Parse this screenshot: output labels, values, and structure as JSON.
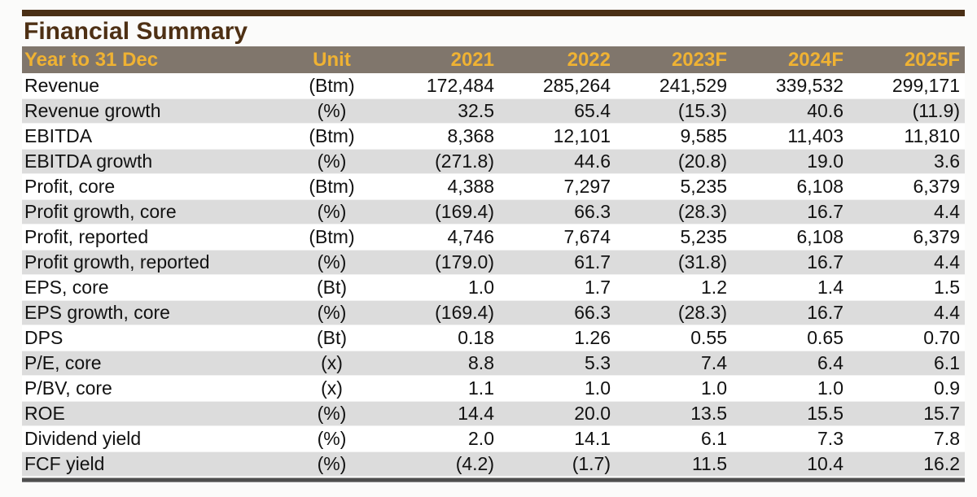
{
  "page": {
    "title": "Financial Summary"
  },
  "colors": {
    "title_brown": "#4e3014",
    "top_rule_brown": "#4a2f15",
    "header_bg_taupe": "#80766c",
    "header_text_gold": "#efb233",
    "row_alt_gray": "#dcdcdc",
    "body_text": "#121212",
    "bottom_rule_gray": "#4e4e4e"
  },
  "table": {
    "columns": [
      "Year to 31 Dec",
      "Unit",
      "2021",
      "2022",
      "2023F",
      "2024F",
      "2025F"
    ],
    "rows": [
      {
        "label": "Revenue",
        "unit": "(Btm)",
        "values": [
          "172,484",
          "285,264",
          "241,529",
          "339,532",
          "299,171"
        ]
      },
      {
        "label": "Revenue growth",
        "unit": "(%)",
        "values": [
          "32.5",
          "65.4",
          "(15.3)",
          "40.6",
          "(11.9)"
        ]
      },
      {
        "label": "EBITDA",
        "unit": "(Btm)",
        "values": [
          "8,368",
          "12,101",
          "9,585",
          "11,403",
          "11,810"
        ]
      },
      {
        "label": "EBITDA growth",
        "unit": "(%)",
        "values": [
          "(271.8)",
          "44.6",
          "(20.8)",
          "19.0",
          "3.6"
        ]
      },
      {
        "label": "Profit, core",
        "unit": "(Btm)",
        "values": [
          "4,388",
          "7,297",
          "5,235",
          "6,108",
          "6,379"
        ]
      },
      {
        "label": "Profit growth, core",
        "unit": "(%)",
        "values": [
          "(169.4)",
          "66.3",
          "(28.3)",
          "16.7",
          "4.4"
        ]
      },
      {
        "label": "Profit, reported",
        "unit": "(Btm)",
        "values": [
          "4,746",
          "7,674",
          "5,235",
          "6,108",
          "6,379"
        ]
      },
      {
        "label": "Profit growth, reported",
        "unit": "(%)",
        "values": [
          "(179.0)",
          "61.7",
          "(31.8)",
          "16.7",
          "4.4"
        ]
      },
      {
        "label": "EPS, core",
        "unit": "(Bt)",
        "values": [
          "1.0",
          "1.7",
          "1.2",
          "1.4",
          "1.5"
        ]
      },
      {
        "label": "EPS growth, core",
        "unit": "(%)",
        "values": [
          "(169.4)",
          "66.3",
          "(28.3)",
          "16.7",
          "4.4"
        ]
      },
      {
        "label": "DPS",
        "unit": "(Bt)",
        "values": [
          "0.18",
          "1.26",
          "0.55",
          "0.65",
          "0.70"
        ]
      },
      {
        "label": "P/E, core",
        "unit": "(x)",
        "values": [
          "8.8",
          "5.3",
          "7.4",
          "6.4",
          "6.1"
        ]
      },
      {
        "label": "P/BV, core",
        "unit": "(x)",
        "values": [
          "1.1",
          "1.0",
          "1.0",
          "1.0",
          "0.9"
        ]
      },
      {
        "label": "ROE",
        "unit": "(%)",
        "values": [
          "14.4",
          "20.0",
          "13.5",
          "15.5",
          "15.7"
        ]
      },
      {
        "label": "Dividend yield",
        "unit": "(%)",
        "values": [
          "2.0",
          "14.1",
          "6.1",
          "7.3",
          "7.8"
        ]
      },
      {
        "label": "FCF yield",
        "unit": "(%)",
        "values": [
          "(4.2)",
          "(1.7)",
          "11.5",
          "10.4",
          "16.2"
        ]
      }
    ]
  }
}
